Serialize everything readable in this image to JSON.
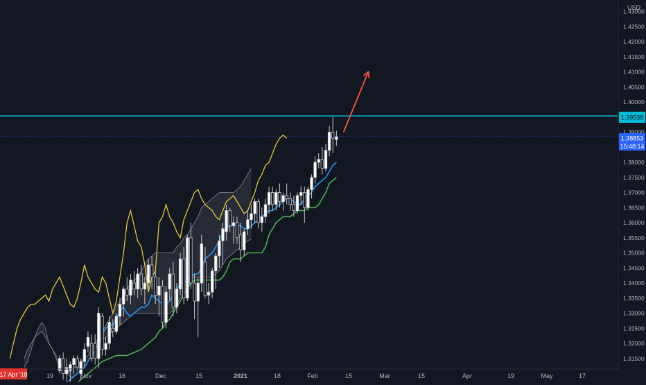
{
  "chart_data": {
    "type": "candlestick",
    "currency": "USD",
    "x_ticks": [
      "19",
      "Nov",
      "16",
      "Dec",
      "15",
      "2021",
      "18",
      "Feb",
      "15",
      "Mar",
      "15",
      "Apr",
      "19",
      "May",
      "17"
    ],
    "y_ticks": [
      "1.43000",
      "1.42500",
      "1.42000",
      "1.41500",
      "1.41000",
      "1.40500",
      "1.40000",
      "1.39500",
      "1.39000",
      "1.38500",
      "1.38000",
      "1.37500",
      "1.37000",
      "1.36500",
      "1.36000",
      "1.35500",
      "1.35000",
      "1.34500",
      "1.34000",
      "1.33500",
      "1.33000",
      "1.32500",
      "1.32000",
      "1.31500"
    ],
    "ylim": [
      1.3115,
      1.4338
    ],
    "horizontal_level": {
      "label": "1.39538",
      "value": 1.39538,
      "color": "#00bcd4"
    },
    "last_price": {
      "label": "1.38853",
      "value": 1.38853,
      "countdown": "15:48:14",
      "color": "#2962ff"
    },
    "date_marker": "17 Apr '18",
    "candles": [
      [
        1.311,
        1.316,
        1.31,
        1.315
      ],
      [
        1.315,
        1.317,
        1.308,
        1.31
      ],
      [
        1.31,
        1.315,
        1.306,
        1.312
      ],
      [
        1.311,
        1.314,
        1.305,
        1.313
      ],
      [
        1.313,
        1.316,
        1.31,
        1.315
      ],
      [
        1.315,
        1.316,
        1.311,
        1.312
      ],
      [
        1.31,
        1.315,
        1.308,
        1.314
      ],
      [
        1.314,
        1.32,
        1.312,
        1.318
      ],
      [
        1.319,
        1.324,
        1.317,
        1.322
      ],
      [
        1.32,
        1.323,
        1.314,
        1.315
      ],
      [
        1.32,
        1.323,
        1.313,
        1.315
      ],
      [
        1.315,
        1.332,
        1.312,
        1.33
      ],
      [
        1.329,
        1.33,
        1.316,
        1.318
      ],
      [
        1.318,
        1.322,
        1.316,
        1.32
      ],
      [
        1.32,
        1.329,
        1.318,
        1.327
      ],
      [
        1.325,
        1.328,
        1.322,
        1.324
      ],
      [
        1.324,
        1.33,
        1.323,
        1.329
      ],
      [
        1.329,
        1.335,
        1.326,
        1.333
      ],
      [
        1.333,
        1.339,
        1.329,
        1.338
      ],
      [
        1.338,
        1.342,
        1.334,
        1.336
      ],
      [
        1.336,
        1.343,
        1.333,
        1.341
      ],
      [
        1.34,
        1.344,
        1.336,
        1.338
      ],
      [
        1.338,
        1.345,
        1.335,
        1.343
      ],
      [
        1.343,
        1.346,
        1.336,
        1.338
      ],
      [
        1.338,
        1.342,
        1.333,
        1.34
      ],
      [
        1.34,
        1.348,
        1.338,
        1.346
      ],
      [
        1.346,
        1.349,
        1.338,
        1.342
      ],
      [
        1.342,
        1.344,
        1.333,
        1.336
      ],
      [
        1.336,
        1.342,
        1.329,
        1.339
      ],
      [
        1.339,
        1.341,
        1.325,
        1.327
      ],
      [
        1.327,
        1.339,
        1.325,
        1.337
      ],
      [
        1.338,
        1.345,
        1.334,
        1.343
      ],
      [
        1.343,
        1.347,
        1.329,
        1.332
      ],
      [
        1.332,
        1.34,
        1.33,
        1.338
      ],
      [
        1.338,
        1.35,
        1.336,
        1.348
      ],
      [
        1.348,
        1.352,
        1.333,
        1.335
      ],
      [
        1.335,
        1.356,
        1.334,
        1.355
      ],
      [
        1.355,
        1.36,
        1.338,
        1.34
      ],
      [
        1.34,
        1.343,
        1.328,
        1.334
      ],
      [
        1.334,
        1.342,
        1.322,
        1.34
      ],
      [
        1.34,
        1.356,
        1.337,
        1.353
      ],
      [
        1.347,
        1.352,
        1.335,
        1.336
      ],
      [
        1.336,
        1.34,
        1.333,
        1.337
      ],
      [
        1.337,
        1.345,
        1.335,
        1.344
      ],
      [
        1.344,
        1.35,
        1.338,
        1.349
      ],
      [
        1.349,
        1.356,
        1.345,
        1.354
      ],
      [
        1.354,
        1.36,
        1.346,
        1.358
      ],
      [
        1.357,
        1.366,
        1.354,
        1.364
      ],
      [
        1.364,
        1.365,
        1.357,
        1.359
      ],
      [
        1.359,
        1.362,
        1.353,
        1.36
      ],
      [
        1.36,
        1.362,
        1.353,
        1.355
      ],
      [
        1.356,
        1.36,
        1.347,
        1.351
      ],
      [
        1.351,
        1.358,
        1.349,
        1.357
      ],
      [
        1.358,
        1.364,
        1.356,
        1.361
      ],
      [
        1.361,
        1.366,
        1.358,
        1.363
      ],
      [
        1.363,
        1.368,
        1.36,
        1.367
      ],
      [
        1.367,
        1.368,
        1.358,
        1.36
      ],
      [
        1.36,
        1.365,
        1.357,
        1.362
      ],
      [
        1.362,
        1.368,
        1.36,
        1.366
      ],
      [
        1.366,
        1.372,
        1.363,
        1.37
      ],
      [
        1.37,
        1.372,
        1.364,
        1.366
      ],
      [
        1.366,
        1.371,
        1.364,
        1.37
      ],
      [
        1.37,
        1.373,
        1.365,
        1.367
      ],
      [
        1.367,
        1.37,
        1.364,
        1.369
      ],
      [
        1.369,
        1.373,
        1.366,
        1.368
      ],
      [
        1.368,
        1.37,
        1.364,
        1.366
      ],
      [
        1.366,
        1.369,
        1.362,
        1.364
      ],
      [
        1.364,
        1.37,
        1.363,
        1.369
      ],
      [
        1.369,
        1.372,
        1.366,
        1.37
      ],
      [
        1.37,
        1.372,
        1.36,
        1.365
      ],
      [
        1.365,
        1.372,
        1.364,
        1.371
      ],
      [
        1.371,
        1.376,
        1.368,
        1.375
      ],
      [
        1.375,
        1.382,
        1.373,
        1.38
      ],
      [
        1.38,
        1.383,
        1.378,
        1.381
      ],
      [
        1.381,
        1.385,
        1.376,
        1.378
      ],
      [
        1.378,
        1.386,
        1.377,
        1.384
      ],
      [
        1.384,
        1.392,
        1.382,
        1.39
      ],
      [
        1.39,
        1.395,
        1.383,
        1.388
      ],
      [
        1.3875,
        1.3905,
        1.3855,
        1.3885
      ]
    ],
    "tenkan": [
      1.305,
      1.306,
      1.307,
      1.308,
      1.309,
      1.31,
      1.311,
      1.312,
      1.314,
      1.316,
      1.318,
      1.32,
      1.323,
      1.325,
      1.326,
      1.326,
      1.328,
      1.331,
      1.332,
      1.33,
      1.329,
      1.33,
      1.331,
      1.332,
      1.332,
      1.333,
      1.336,
      1.335,
      1.334,
      1.333,
      1.333,
      1.334,
      1.336,
      1.338,
      1.34,
      1.34,
      1.341,
      1.342,
      1.343,
      1.343,
      1.345,
      1.348,
      1.349,
      1.35,
      1.352,
      1.354,
      1.357,
      1.358,
      1.359,
      1.359,
      1.359,
      1.359,
      1.358,
      1.358,
      1.359,
      1.36,
      1.361,
      1.362,
      1.363,
      1.364,
      1.364,
      1.365,
      1.366,
      1.367,
      1.368,
      1.368,
      1.367,
      1.366,
      1.366,
      1.368,
      1.369,
      1.37,
      1.372,
      1.373,
      1.374,
      1.375,
      1.377,
      1.379,
      1.38
    ],
    "kijun": [
      1.302,
      1.303,
      1.304,
      1.305,
      1.306,
      1.307,
      1.308,
      1.309,
      1.31,
      1.311,
      1.312,
      1.313,
      1.314,
      1.3145,
      1.315,
      1.3155,
      1.316,
      1.316,
      1.316,
      1.316,
      1.3165,
      1.317,
      1.3175,
      1.318,
      1.319,
      1.32,
      1.321,
      1.322,
      1.324,
      1.325,
      1.327,
      1.328,
      1.33,
      1.332,
      1.334,
      1.336,
      1.338,
      1.34,
      1.341,
      1.341,
      1.341,
      1.341,
      1.341,
      1.341,
      1.341,
      1.341,
      1.342,
      1.344,
      1.347,
      1.348,
      1.348,
      1.348,
      1.349,
      1.35,
      1.35,
      1.35,
      1.35,
      1.35,
      1.352,
      1.356,
      1.358,
      1.36,
      1.361,
      1.362,
      1.362,
      1.362,
      1.363,
      1.364,
      1.364,
      1.364,
      1.365,
      1.365,
      1.365,
      1.366,
      1.368,
      1.37,
      1.373,
      1.374,
      1.375
    ],
    "chikou": [
      1.315,
      1.32,
      1.325,
      1.328,
      1.33,
      1.332,
      1.333,
      1.333,
      1.334,
      1.335,
      1.336,
      1.334,
      1.338,
      1.34,
      1.342,
      1.339,
      1.336,
      1.333,
      1.332,
      1.335,
      1.34,
      1.346,
      1.342,
      1.34,
      1.338,
      1.337,
      1.342,
      1.34,
      1.335,
      1.33,
      1.334,
      1.342,
      1.35,
      1.36,
      1.364,
      1.359,
      1.354,
      1.352,
      1.346,
      1.337,
      1.342,
      1.344,
      1.36,
      1.362,
      1.366,
      1.362,
      1.36,
      1.357,
      1.355,
      1.361,
      1.364,
      1.367,
      1.37,
      1.371,
      1.368,
      1.366,
      1.365,
      1.364,
      1.362,
      1.361,
      1.364,
      1.367,
      1.368,
      1.369,
      1.367,
      1.365,
      1.363,
      1.364,
      1.367,
      1.37,
      1.374,
      1.376,
      1.379,
      1.38,
      1.383,
      1.386,
      1.388,
      1.389,
      1.388
    ],
    "senkou_a": [
      1.312,
      1.314,
      1.318,
      1.322,
      1.325,
      1.327,
      1.325,
      1.32,
      1.318,
      1.315,
      1.312,
      1.31,
      1.31,
      1.311,
      1.312,
      1.313,
      1.314,
      1.315,
      1.316,
      1.318,
      1.32,
      1.322,
      1.324,
      1.326,
      1.328,
      1.33,
      1.332,
      1.334,
      1.336,
      1.338,
      1.34,
      1.341,
      1.342,
      1.344,
      1.346,
      1.348,
      1.349,
      1.35,
      1.35,
      1.35,
      1.35,
      1.35,
      1.35,
      1.352,
      1.353,
      1.355,
      1.356,
      1.358,
      1.36,
      1.362,
      1.365,
      1.366,
      1.367,
      1.368,
      1.369,
      1.37,
      1.37,
      1.37,
      1.37,
      1.37,
      1.371,
      1.372,
      1.374,
      1.376,
      1.378
    ],
    "senkou_b": [
      1.315,
      1.318,
      1.32,
      1.322,
      1.323,
      1.324,
      1.322,
      1.32,
      1.318,
      1.316,
      1.314,
      1.312,
      1.31,
      1.309,
      1.309,
      1.31,
      1.311,
      1.312,
      1.314,
      1.316,
      1.318,
      1.32,
      1.321,
      1.322,
      1.323,
      1.324,
      1.325,
      1.326,
      1.327,
      1.328,
      1.329,
      1.33,
      1.33,
      1.33,
      1.33,
      1.33,
      1.33,
      1.33,
      1.33,
      1.33,
      1.33,
      1.33,
      1.331,
      1.333,
      1.335,
      1.337,
      1.339,
      1.341,
      1.342,
      1.342,
      1.342,
      1.342,
      1.342,
      1.342,
      1.343,
      1.344,
      1.346,
      1.348,
      1.349,
      1.35,
      1.351,
      1.352,
      1.353,
      1.354,
      1.3545
    ],
    "colors": {
      "background": "#131722",
      "up_candle": "#ffffff",
      "down_candle": "#131722",
      "candle_outline": "#c8c9cc",
      "tenkan": "#2196f3",
      "kijun": "#4caf50",
      "chikou": "#e5c83a",
      "cloud_fill": "#2a2e39",
      "cloud_edge": "#b2b5be",
      "arrow": "#e9533c",
      "axis_text": "#b2b5be"
    }
  }
}
